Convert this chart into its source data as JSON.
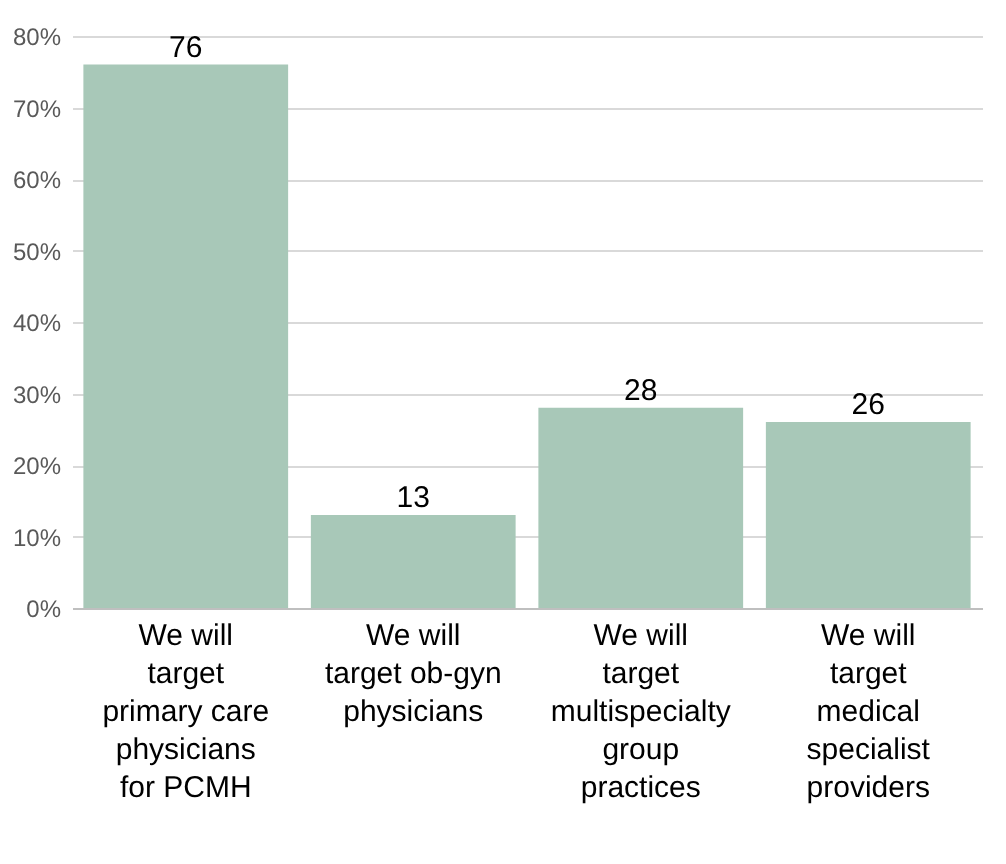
{
  "chart_data": {
    "type": "bar",
    "categories": [
      "We will target primary care physicians for PCMH",
      "We will target ob-gyn physicians",
      "We will target multispecialty group practices",
      "We will target medical specialist providers"
    ],
    "values": [
      76,
      13,
      28,
      26
    ],
    "color": "#a8c8b8",
    "ylim": [
      0,
      80
    ],
    "yticks": [
      {
        "value": 0,
        "label": "0%"
      },
      {
        "value": 10,
        "label": "10%"
      },
      {
        "value": 20,
        "label": "20%"
      },
      {
        "value": 30,
        "label": "30%"
      },
      {
        "value": 40,
        "label": "40%"
      },
      {
        "value": 50,
        "label": "50%"
      },
      {
        "value": 60,
        "label": "60%"
      },
      {
        "value": 70,
        "label": "70%"
      },
      {
        "value": 80,
        "label": "80%"
      }
    ],
    "grid": "y",
    "data_labels": true
  }
}
